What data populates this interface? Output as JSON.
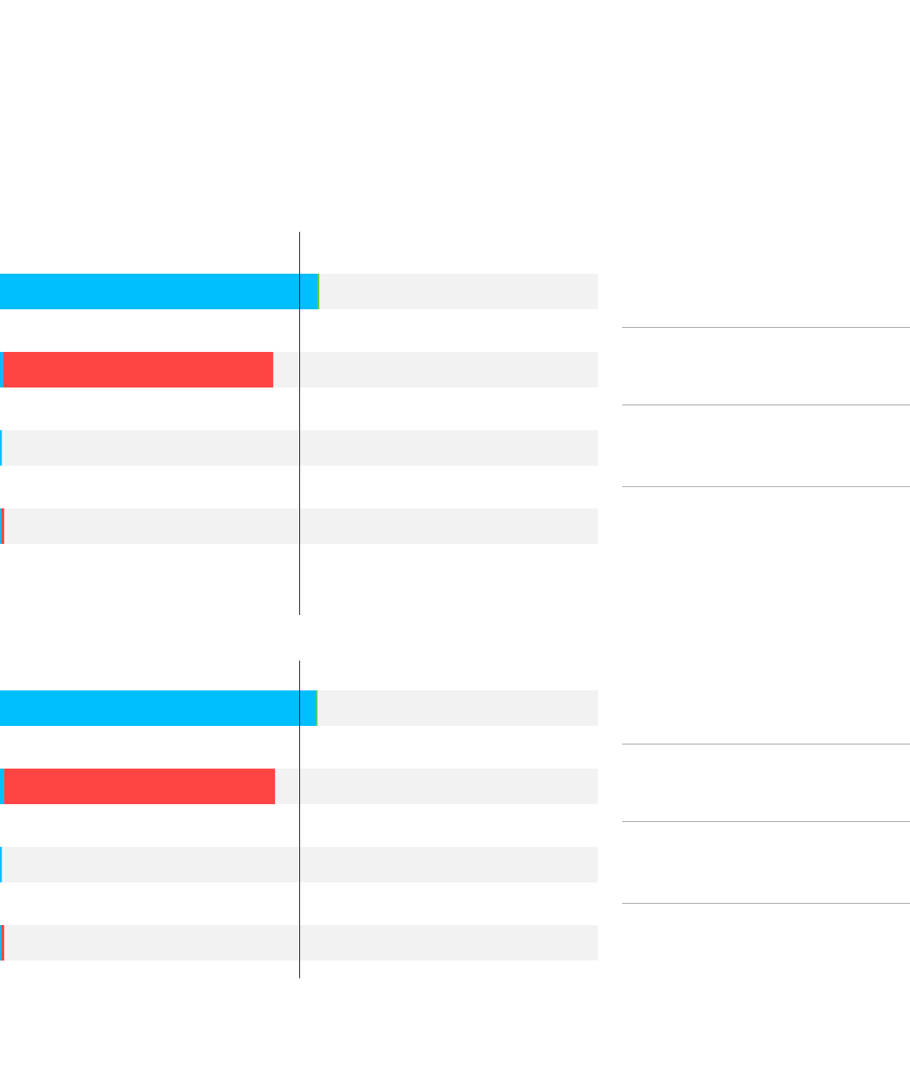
{
  "chart_data": [
    {
      "type": "stacked-bar",
      "categories": [
        null,
        null,
        null,
        null
      ],
      "series": [
        {
          "color": "#00bfff",
          "values": [
            53.1,
            0.5,
            0.3,
            0.2
          ]
        },
        {
          "color": "#ff4444",
          "values": [
            0,
            45.2,
            0,
            0.5
          ]
        },
        {
          "color": "#66cc33",
          "values": [
            0.3,
            0,
            0,
            0
          ]
        }
      ],
      "xlim": [
        0,
        100
      ],
      "midline": 50,
      "track_color": "#f2f2f2"
    },
    {
      "type": "stacked-bar",
      "categories": [
        null,
        null,
        null,
        null
      ],
      "series": [
        {
          "color": "#00bfff",
          "values": [
            52.9,
            0.7,
            0.3,
            0.2
          ]
        },
        {
          "color": "#ff4444",
          "values": [
            0,
            45.3,
            0,
            0.5
          ]
        },
        {
          "color": "#66cc33",
          "values": [
            0.2,
            0,
            0,
            0
          ]
        }
      ],
      "xlim": [
        0,
        100
      ],
      "midline": 50,
      "track_color": "#f2f2f2"
    }
  ]
}
